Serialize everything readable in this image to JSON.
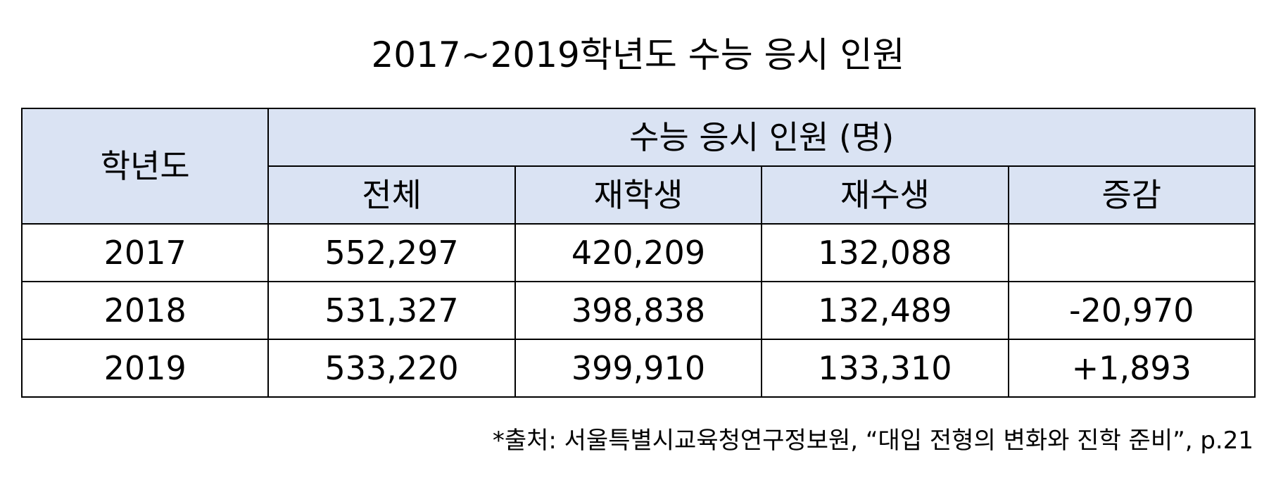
{
  "title": "2017~2019학년도 수능 응시 인원",
  "chart_data": {
    "type": "table",
    "title": "2017~2019학년도 수능 응시 인원",
    "header_group": "수능 응시 인원 (명)",
    "columns": [
      "학년도",
      "전체",
      "재학생",
      "재수생",
      "증감"
    ],
    "rows": [
      [
        "2017",
        "552,297",
        "420,209",
        "132,088",
        ""
      ],
      [
        "2018",
        "531,327",
        "398,838",
        "132,489",
        "-20,970"
      ],
      [
        "2019",
        "533,220",
        "399,910",
        "133,310",
        "+1,893"
      ]
    ]
  },
  "source": "*출처: 서울특별시교육청연구정보원, “대입 전형의 변화와 진학 준비”, p.21"
}
